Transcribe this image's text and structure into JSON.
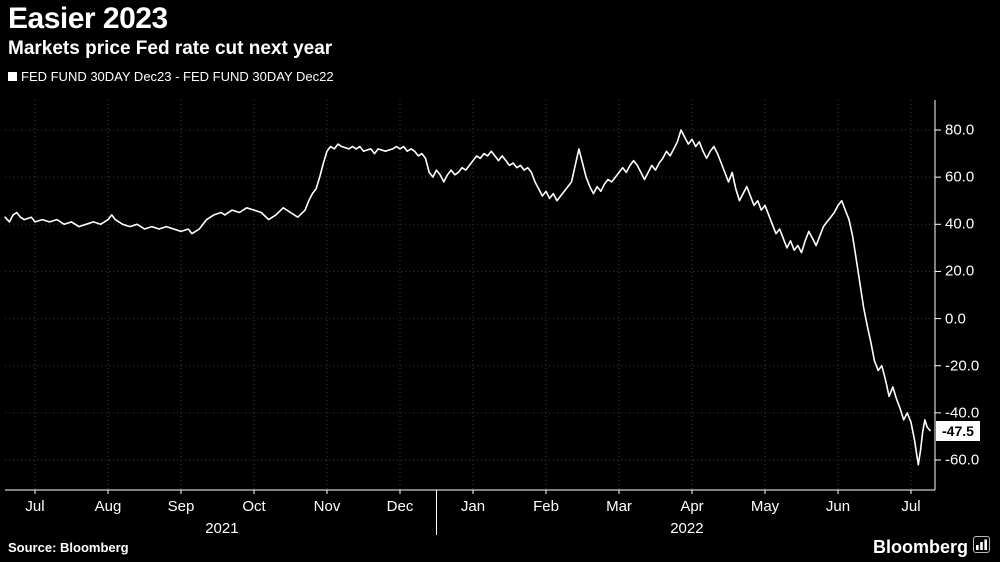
{
  "title": "Easier 2023",
  "subtitle": "Markets price Fed rate cut next year",
  "legend": {
    "label": "FED FUND 30DAY Dec23 - FED FUND 30DAY Dec22"
  },
  "source": "Source: Bloomberg",
  "brand": "Bloomberg",
  "last_value_label": "-47.5",
  "colors": {
    "background": "#000000",
    "line": "#ffffff",
    "grid": "#3b3b3b",
    "axis": "#ffffff",
    "text": "#ffffff",
    "label_box_bg": "#ffffff",
    "label_box_text": "#000000"
  },
  "chart_data": {
    "type": "line",
    "title": "Easier 2023",
    "subtitle": "Markets price Fed rate cut next year",
    "x_unit": "months (0 = Jul 2021 tick, 12 = Jul 2022 tick)",
    "x_tick_labels": [
      "Jul",
      "Aug",
      "Sep",
      "Oct",
      "Nov",
      "Dec",
      "Jan",
      "Feb",
      "Mar",
      "Apr",
      "May",
      "Jun",
      "Jul"
    ],
    "x_tick_positions": [
      0,
      1,
      2,
      3,
      4,
      5,
      6,
      7,
      8,
      9,
      10,
      11,
      12
    ],
    "year_labels": [
      {
        "label": "2021",
        "position": 2.56
      },
      {
        "label": "2022",
        "position": 8.93
      }
    ],
    "year_separator_position": 5.5,
    "y_ticks": [
      80,
      60,
      40,
      20,
      0,
      -20,
      -40,
      -60
    ],
    "y_tick_labels": [
      "80.0",
      "60.0",
      "40.0",
      "20.0",
      "0.0",
      "-20.0",
      "-40.0",
      "-60.0"
    ],
    "ylim": [
      -72.7,
      92.7
    ],
    "xlim": [
      -0.41,
      12.33
    ],
    "grid": true,
    "legend_position": "top-left",
    "last_value": -47.5,
    "series": [
      {
        "name": "FED FUND 30DAY Dec23 - FED FUND 30DAY Dec22",
        "color": "#ffffff",
        "points": [
          [
            -0.41,
            43
          ],
          [
            -0.35,
            41
          ],
          [
            -0.3,
            44
          ],
          [
            -0.25,
            45
          ],
          [
            -0.2,
            43
          ],
          [
            -0.15,
            42
          ],
          [
            -0.05,
            43
          ],
          [
            0,
            41
          ],
          [
            0.1,
            42
          ],
          [
            0.2,
            41
          ],
          [
            0.3,
            42
          ],
          [
            0.4,
            40
          ],
          [
            0.5,
            41
          ],
          [
            0.6,
            39
          ],
          [
            0.7,
            40
          ],
          [
            0.8,
            41
          ],
          [
            0.9,
            40
          ],
          [
            1.0,
            42
          ],
          [
            1.05,
            44
          ],
          [
            1.1,
            42
          ],
          [
            1.2,
            40
          ],
          [
            1.3,
            39
          ],
          [
            1.4,
            40
          ],
          [
            1.5,
            38
          ],
          [
            1.6,
            39
          ],
          [
            1.7,
            38
          ],
          [
            1.8,
            39
          ],
          [
            1.9,
            38
          ],
          [
            2.0,
            37
          ],
          [
            2.1,
            38
          ],
          [
            2.15,
            36
          ],
          [
            2.25,
            38
          ],
          [
            2.35,
            42
          ],
          [
            2.45,
            44
          ],
          [
            2.55,
            45
          ],
          [
            2.6,
            44
          ],
          [
            2.7,
            46
          ],
          [
            2.8,
            45
          ],
          [
            2.9,
            47
          ],
          [
            3.0,
            46
          ],
          [
            3.1,
            45
          ],
          [
            3.2,
            42
          ],
          [
            3.3,
            44
          ],
          [
            3.4,
            47
          ],
          [
            3.5,
            45
          ],
          [
            3.6,
            43
          ],
          [
            3.7,
            46
          ],
          [
            3.75,
            50
          ],
          [
            3.8,
            53
          ],
          [
            3.85,
            55
          ],
          [
            3.9,
            60
          ],
          [
            3.95,
            66
          ],
          [
            4.0,
            71
          ],
          [
            4.05,
            73
          ],
          [
            4.1,
            72
          ],
          [
            4.15,
            74
          ],
          [
            4.2,
            73
          ],
          [
            4.3,
            72
          ],
          [
            4.35,
            73
          ],
          [
            4.4,
            72
          ],
          [
            4.45,
            73
          ],
          [
            4.5,
            71
          ],
          [
            4.6,
            72
          ],
          [
            4.65,
            70
          ],
          [
            4.7,
            72
          ],
          [
            4.8,
            71
          ],
          [
            4.9,
            72
          ],
          [
            4.95,
            73
          ],
          [
            5.0,
            72
          ],
          [
            5.05,
            73
          ],
          [
            5.1,
            71
          ],
          [
            5.15,
            72
          ],
          [
            5.2,
            71
          ],
          [
            5.25,
            69
          ],
          [
            5.3,
            70
          ],
          [
            5.35,
            68
          ],
          [
            5.4,
            62
          ],
          [
            5.45,
            60
          ],
          [
            5.5,
            63
          ],
          [
            5.55,
            61
          ],
          [
            5.6,
            58
          ],
          [
            5.65,
            61
          ],
          [
            5.7,
            63
          ],
          [
            5.75,
            61
          ],
          [
            5.8,
            62
          ],
          [
            5.85,
            64
          ],
          [
            5.9,
            63
          ],
          [
            5.95,
            65
          ],
          [
            6.0,
            67
          ],
          [
            6.05,
            69
          ],
          [
            6.1,
            68
          ],
          [
            6.15,
            70
          ],
          [
            6.2,
            69
          ],
          [
            6.25,
            71
          ],
          [
            6.3,
            69
          ],
          [
            6.35,
            67
          ],
          [
            6.4,
            69
          ],
          [
            6.45,
            67
          ],
          [
            6.5,
            65
          ],
          [
            6.55,
            66
          ],
          [
            6.6,
            64
          ],
          [
            6.65,
            65
          ],
          [
            6.7,
            63
          ],
          [
            6.75,
            64
          ],
          [
            6.8,
            62
          ],
          [
            6.85,
            58
          ],
          [
            6.9,
            55
          ],
          [
            6.95,
            52
          ],
          [
            7.0,
            54
          ],
          [
            7.05,
            51
          ],
          [
            7.1,
            53
          ],
          [
            7.15,
            50
          ],
          [
            7.2,
            52
          ],
          [
            7.25,
            54
          ],
          [
            7.3,
            56
          ],
          [
            7.35,
            58
          ],
          [
            7.4,
            65
          ],
          [
            7.45,
            72
          ],
          [
            7.5,
            66
          ],
          [
            7.55,
            60
          ],
          [
            7.6,
            56
          ],
          [
            7.65,
            53
          ],
          [
            7.7,
            56
          ],
          [
            7.75,
            54
          ],
          [
            7.8,
            57
          ],
          [
            7.85,
            59
          ],
          [
            7.9,
            58
          ],
          [
            7.95,
            60
          ],
          [
            8.0,
            62
          ],
          [
            8.05,
            64
          ],
          [
            8.1,
            62
          ],
          [
            8.15,
            65
          ],
          [
            8.2,
            67
          ],
          [
            8.25,
            65
          ],
          [
            8.3,
            62
          ],
          [
            8.35,
            59
          ],
          [
            8.4,
            62
          ],
          [
            8.45,
            65
          ],
          [
            8.5,
            63
          ],
          [
            8.55,
            66
          ],
          [
            8.6,
            68
          ],
          [
            8.65,
            71
          ],
          [
            8.7,
            69
          ],
          [
            8.75,
            72
          ],
          [
            8.8,
            75
          ],
          [
            8.85,
            80
          ],
          [
            8.9,
            77
          ],
          [
            8.95,
            74
          ],
          [
            9.0,
            76
          ],
          [
            9.05,
            73
          ],
          [
            9.1,
            75
          ],
          [
            9.15,
            71
          ],
          [
            9.2,
            68
          ],
          [
            9.25,
            71
          ],
          [
            9.3,
            73
          ],
          [
            9.35,
            70
          ],
          [
            9.4,
            66
          ],
          [
            9.45,
            62
          ],
          [
            9.5,
            58
          ],
          [
            9.55,
            62
          ],
          [
            9.6,
            55
          ],
          [
            9.65,
            50
          ],
          [
            9.7,
            53
          ],
          [
            9.75,
            56
          ],
          [
            9.8,
            52
          ],
          [
            9.85,
            48
          ],
          [
            9.9,
            50
          ],
          [
            9.95,
            46
          ],
          [
            10.0,
            48
          ],
          [
            10.05,
            44
          ],
          [
            10.1,
            40
          ],
          [
            10.15,
            36
          ],
          [
            10.2,
            38
          ],
          [
            10.25,
            34
          ],
          [
            10.3,
            30
          ],
          [
            10.35,
            33
          ],
          [
            10.4,
            29
          ],
          [
            10.45,
            31
          ],
          [
            10.5,
            28
          ],
          [
            10.55,
            33
          ],
          [
            10.6,
            37
          ],
          [
            10.65,
            34
          ],
          [
            10.7,
            31
          ],
          [
            10.75,
            35
          ],
          [
            10.8,
            39
          ],
          [
            10.85,
            41
          ],
          [
            10.9,
            43
          ],
          [
            10.95,
            45
          ],
          [
            11.0,
            48
          ],
          [
            11.05,
            50
          ],
          [
            11.1,
            46
          ],
          [
            11.15,
            42
          ],
          [
            11.2,
            35
          ],
          [
            11.25,
            25
          ],
          [
            11.3,
            15
          ],
          [
            11.35,
            5
          ],
          [
            11.4,
            -3
          ],
          [
            11.45,
            -10
          ],
          [
            11.5,
            -18
          ],
          [
            11.55,
            -22
          ],
          [
            11.6,
            -20
          ],
          [
            11.65,
            -26
          ],
          [
            11.7,
            -33
          ],
          [
            11.75,
            -29
          ],
          [
            11.8,
            -34
          ],
          [
            11.85,
            -38
          ],
          [
            11.9,
            -43
          ],
          [
            11.95,
            -40
          ],
          [
            12.0,
            -44
          ],
          [
            12.05,
            -52
          ],
          [
            12.08,
            -58
          ],
          [
            12.1,
            -62
          ],
          [
            12.13,
            -56
          ],
          [
            12.16,
            -48
          ],
          [
            12.19,
            -43
          ],
          [
            12.22,
            -46
          ],
          [
            12.26,
            -47.5
          ]
        ]
      }
    ]
  }
}
